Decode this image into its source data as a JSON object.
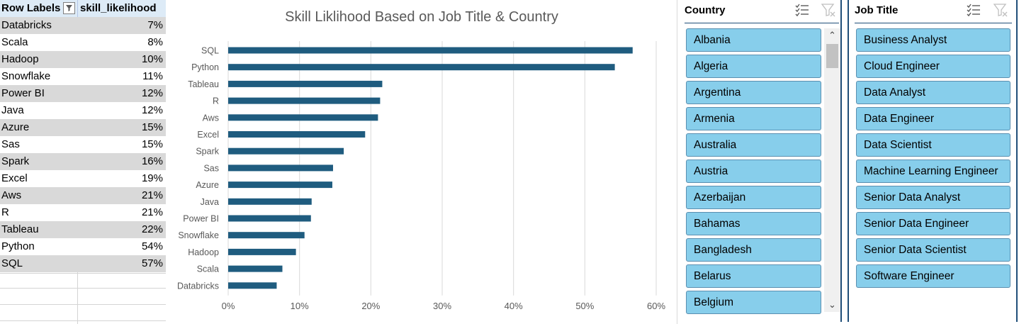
{
  "pivot": {
    "header_label": "Row Labels",
    "header_value": "skill_likelihood",
    "rows": [
      {
        "label": "Databricks",
        "value": "7%"
      },
      {
        "label": "Scala",
        "value": "8%"
      },
      {
        "label": "Hadoop",
        "value": "10%"
      },
      {
        "label": "Snowflake",
        "value": "11%"
      },
      {
        "label": "Power BI",
        "value": "12%"
      },
      {
        "label": "Java",
        "value": "12%"
      },
      {
        "label": "Azure",
        "value": "15%"
      },
      {
        "label": "Sas",
        "value": "15%"
      },
      {
        "label": "Spark",
        "value": "16%"
      },
      {
        "label": "Excel",
        "value": "19%"
      },
      {
        "label": "Aws",
        "value": "21%"
      },
      {
        "label": "R",
        "value": "21%"
      },
      {
        "label": "Tableau",
        "value": "22%"
      },
      {
        "label": "Python",
        "value": "54%"
      },
      {
        "label": "SQL",
        "value": "57%"
      }
    ]
  },
  "chart_data": {
    "type": "bar",
    "orientation": "horizontal",
    "title": "Skill Liklihood Based on Job Title & Country",
    "categories": [
      "SQL",
      "Python",
      "Tableau",
      "R",
      "Aws",
      "Excel",
      "Spark",
      "Sas",
      "Azure",
      "Java",
      "Power BI",
      "Snowflake",
      "Hadoop",
      "Scala",
      "Databricks"
    ],
    "values": [
      56.7,
      54.2,
      21.6,
      21.3,
      21.0,
      19.2,
      16.2,
      14.7,
      14.6,
      11.7,
      11.6,
      10.7,
      9.5,
      7.6,
      6.8
    ],
    "x_ticks": [
      "0%",
      "10%",
      "20%",
      "30%",
      "40%",
      "50%",
      "60%"
    ],
    "xlim": [
      0,
      60
    ],
    "grid": true,
    "bar_color": "#1f5c7f"
  },
  "slicer_country": {
    "title": "Country",
    "items": [
      "Albania",
      "Algeria",
      "Argentina",
      "Armenia",
      "Australia",
      "Austria",
      "Azerbaijan",
      "Bahamas",
      "Bangladesh",
      "Belarus",
      "Belgium"
    ],
    "icons": [
      "multi-select-icon",
      "clear-filter-icon"
    ]
  },
  "slicer_job": {
    "title": "Job Title",
    "items": [
      "Business Analyst",
      "Cloud Engineer",
      "Data Analyst",
      "Data Engineer",
      "Data Scientist",
      "Machine Learning Engineer",
      "Senior Data Analyst",
      "Senior Data Engineer",
      "Senior Data Scientist",
      "Software Engineer"
    ],
    "icons": [
      "multi-select-icon",
      "clear-filter-icon"
    ]
  },
  "colors": {
    "slicer_button": "#87ceeb",
    "slicer_border": "#1f4e79",
    "pivot_header": "#ddebf7",
    "pivot_shade": "#d9d9d9"
  }
}
